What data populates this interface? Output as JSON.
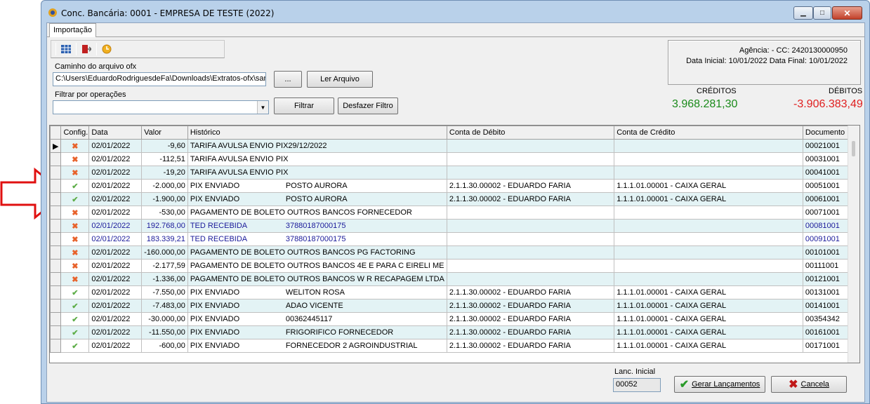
{
  "window": {
    "title": "Conc. Bancária: 0001 - EMPRESA DE TESTE (2022)"
  },
  "tab": {
    "label": "Importação"
  },
  "file": {
    "label": "Caminho do arquivo ofx",
    "value": "C:\\Users\\EduardoRodriguesdeFa\\Downloads\\Extratos-ofx\\san",
    "browse_label": "...",
    "read_label": "Ler Arquivo"
  },
  "filter": {
    "label": "Filtrar por operações",
    "value": "",
    "filter_label": "Filtrar",
    "undo_label": "Desfazer Filtro"
  },
  "info": {
    "line1": "Agência:  - CC: 2420130000950",
    "line2": "Data Inicial: 10/01/2022 Data Final: 10/01/2022"
  },
  "totals": {
    "credit_label": "CRÉDITOS",
    "credit_value": "3.968.281,30",
    "debit_label": "DÉBITOS",
    "debit_value": "-3.906.383,49",
    "credit_color": "#1a8a1a",
    "debit_color": "#e02020"
  },
  "columns": [
    "Config.",
    "Data",
    "Valor",
    "Histórico",
    "Conta de Débito",
    "Conta de Crédito",
    "Documento"
  ],
  "rows": [
    {
      "status": "x",
      "date": "02/01/2022",
      "value": "-9,60",
      "hist1": "TARIFA AVULSA ENVIO PIX",
      "hist2": "29/12/2022",
      "debit": "",
      "credit": "",
      "doc": "00021001",
      "alt": true,
      "blue": false
    },
    {
      "status": "x",
      "date": "02/01/2022",
      "value": "-112,51",
      "hist1": "TARIFA AVULSA ENVIO PIX",
      "hist2": "",
      "debit": "",
      "credit": "",
      "doc": "00031001",
      "alt": false,
      "blue": false
    },
    {
      "status": "x",
      "date": "02/01/2022",
      "value": "-19,20",
      "hist1": "TARIFA AVULSA ENVIO PIX",
      "hist2": "",
      "debit": "",
      "credit": "",
      "doc": "00041001",
      "alt": true,
      "blue": false
    },
    {
      "status": "ok",
      "date": "02/01/2022",
      "value": "-2.000,00",
      "hist1": "PIX ENVIADO",
      "hist2": "POSTO AURORA",
      "debit": "2.1.1.30.00002 - EDUARDO FARIA",
      "credit": "1.1.1.01.00001 - CAIXA GERAL",
      "doc": "00051001",
      "alt": false,
      "blue": false
    },
    {
      "status": "ok",
      "date": "02/01/2022",
      "value": "-1.900,00",
      "hist1": "PIX ENVIADO",
      "hist2": "POSTO AURORA",
      "debit": "2.1.1.30.00002 - EDUARDO FARIA",
      "credit": "1.1.1.01.00001 - CAIXA GERAL",
      "doc": "00061001",
      "alt": true,
      "blue": false
    },
    {
      "status": "x",
      "date": "02/01/2022",
      "value": "-530,00",
      "hist1": "PAGAMENTO DE BOLETO OUTROS BANCOS  FORNECEDOR",
      "hist2": "",
      "debit": "",
      "credit": "",
      "doc": "00071001",
      "alt": false,
      "blue": false
    },
    {
      "status": "x",
      "date": "02/01/2022",
      "value": "192.768,00",
      "hist1": "TED RECEBIDA",
      "hist2": "37880187000175",
      "debit": "",
      "credit": "",
      "doc": "00081001",
      "alt": true,
      "blue": true
    },
    {
      "status": "x",
      "date": "02/01/2022",
      "value": "183.339,21",
      "hist1": "TED RECEBIDA",
      "hist2": "37880187000175",
      "debit": "",
      "credit": "",
      "doc": "00091001",
      "alt": false,
      "blue": true
    },
    {
      "status": "x",
      "date": "02/01/2022",
      "value": "-160.000,00",
      "hist1": "PAGAMENTO DE BOLETO OUTROS BANCOS  PG FACTORING",
      "hist2": "",
      "debit": "",
      "credit": "",
      "doc": "00101001",
      "alt": true,
      "blue": false
    },
    {
      "status": "x",
      "date": "02/01/2022",
      "value": "-2.177,59",
      "hist1": "PAGAMENTO DE BOLETO OUTROS BANCOS  4E E PARA C EIRELI ME",
      "hist2": "",
      "debit": "",
      "credit": "",
      "doc": "00111001",
      "alt": false,
      "blue": false
    },
    {
      "status": "x",
      "date": "02/01/2022",
      "value": "-1.336,00",
      "hist1": "PAGAMENTO DE BOLETO OUTROS BANCOS  W R RECAPAGEM LTDA",
      "hist2": "",
      "debit": "",
      "credit": "",
      "doc": "00121001",
      "alt": true,
      "blue": false
    },
    {
      "status": "ok",
      "date": "02/01/2022",
      "value": "-7.550,00",
      "hist1": "PIX ENVIADO",
      "hist2": "WELITON ROSA",
      "debit": "2.1.1.30.00002 - EDUARDO FARIA",
      "credit": "1.1.1.01.00001 - CAIXA GERAL",
      "doc": "00131001",
      "alt": false,
      "blue": false
    },
    {
      "status": "ok",
      "date": "02/01/2022",
      "value": "-7.483,00",
      "hist1": "PIX ENVIADO",
      "hist2": "ADAO VICENTE",
      "debit": "2.1.1.30.00002 - EDUARDO FARIA",
      "credit": "1.1.1.01.00001 - CAIXA GERAL",
      "doc": "00141001",
      "alt": true,
      "blue": false
    },
    {
      "status": "ok",
      "date": "02/01/2022",
      "value": "-30.000,00",
      "hist1": "PIX ENVIADO",
      "hist2": "00362445117",
      "debit": "2.1.1.30.00002 - EDUARDO FARIA",
      "credit": "1.1.1.01.00001 - CAIXA GERAL",
      "doc": "00354342",
      "alt": false,
      "blue": false
    },
    {
      "status": "ok",
      "date": "02/01/2022",
      "value": "-11.550,00",
      "hist1": "PIX ENVIADO",
      "hist2": "FRIGORIFICO FORNECEDOR",
      "debit": "2.1.1.30.00002 - EDUARDO FARIA",
      "credit": "1.1.1.01.00001 - CAIXA GERAL",
      "doc": "00161001",
      "alt": true,
      "blue": false
    },
    {
      "status": "ok",
      "date": "02/01/2022",
      "value": "-600,00",
      "hist1": "PIX ENVIADO",
      "hist2": "FORNECEDOR 2 AGROINDUSTRIAL",
      "debit": "2.1.1.30.00002 - EDUARDO FARIA",
      "credit": "1.1.1.01.00001 - CAIXA GERAL",
      "doc": "00171001",
      "alt": false,
      "blue": false
    }
  ],
  "footer": {
    "lanc_label": "Lanc. Inicial",
    "lanc_value": "00052",
    "generate_label": "Gerar Lançamentos",
    "cancel_label": "Cancela"
  }
}
